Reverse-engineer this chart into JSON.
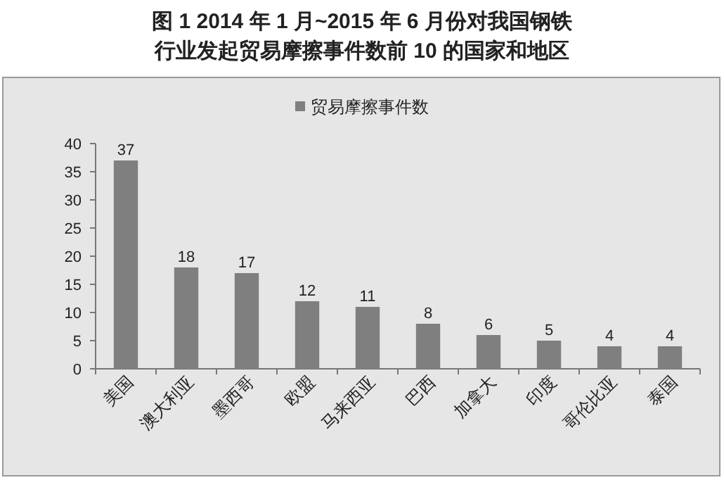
{
  "chart_data": {
    "type": "bar",
    "title": "图 1 2014 年 1 月~2015 年 6 月份对我国钢铁行业发起贸易摩擦事件数前 10 的国家和地区",
    "categories": [
      "美国",
      "澳大利亚",
      "墨西哥",
      "欧盟",
      "马来西亚",
      "巴西",
      "加拿大",
      "印度",
      "哥伦比亚",
      "泰国"
    ],
    "series": [
      {
        "name": "贸易摩擦事件数",
        "color": "#7f7f7f",
        "values": [
          37,
          18,
          17,
          12,
          11,
          8,
          6,
          5,
          4,
          4
        ]
      }
    ],
    "ylim": [
      0,
      40
    ],
    "yticks": [
      0,
      5,
      10,
      15,
      20,
      25,
      30,
      35,
      40
    ],
    "data_labels": true,
    "legend": "top"
  }
}
